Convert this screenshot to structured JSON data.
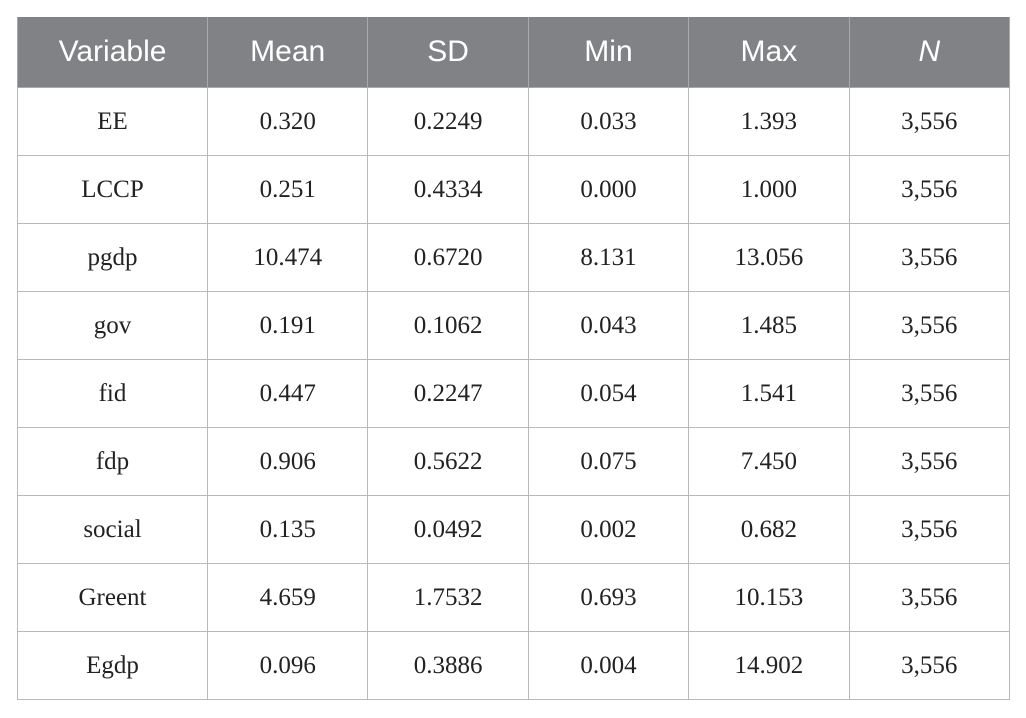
{
  "table": {
    "header": [
      "Variable",
      "Mean",
      "SD",
      "Min",
      "Max",
      "N"
    ],
    "rows": [
      [
        "EE",
        "0.320",
        "0.2249",
        "0.033",
        "1.393",
        "3,556"
      ],
      [
        "LCCP",
        "0.251",
        "0.4334",
        "0.000",
        "1.000",
        "3,556"
      ],
      [
        "pgdp",
        "10.474",
        "0.6720",
        "8.131",
        "13.056",
        "3,556"
      ],
      [
        "gov",
        "0.191",
        "0.1062",
        "0.043",
        "1.485",
        "3,556"
      ],
      [
        "fid",
        "0.447",
        "0.2247",
        "0.054",
        "1.541",
        "3,556"
      ],
      [
        "fdp",
        "0.906",
        "0.5622",
        "0.075",
        "7.450",
        "3,556"
      ],
      [
        "social",
        "0.135",
        "0.0492",
        "0.002",
        "0.682",
        "3,556"
      ],
      [
        "Greent",
        "4.659",
        "1.7532",
        "0.693",
        "10.153",
        "3,556"
      ],
      [
        "Egdp",
        "0.096",
        "0.3886",
        "0.004",
        "14.902",
        "3,556"
      ]
    ]
  }
}
